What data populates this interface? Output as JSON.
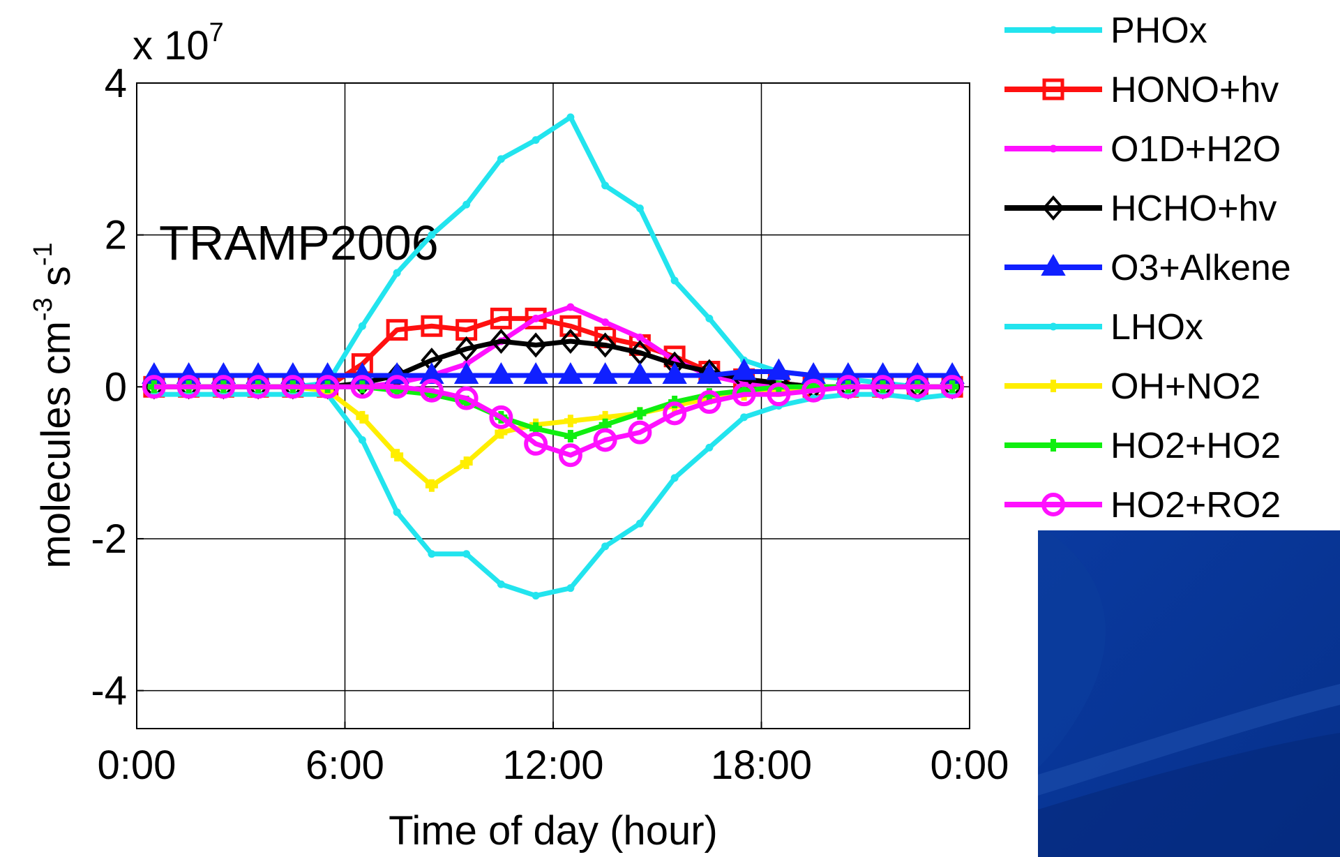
{
  "chart_data": {
    "type": "line",
    "annotation": "TRAMP2006",
    "multiplier": [
      "x 10",
      "7"
    ],
    "xlabel": "Time of day  (hour)",
    "ylabel": [
      "molecules cm",
      "-3",
      " s",
      "-1"
    ],
    "x": [
      0.5,
      1.5,
      2.5,
      3.5,
      4.5,
      5.5,
      6.5,
      7.5,
      8.5,
      9.5,
      10.5,
      11.5,
      12.5,
      13.5,
      14.5,
      15.5,
      16.5,
      17.5,
      18.5,
      19.5,
      20.5,
      21.5,
      22.5,
      23.5
    ],
    "xlim": [
      0,
      24
    ],
    "xticks": [
      {
        "value": 0,
        "label": "0:00"
      },
      {
        "value": 6,
        "label": "6:00"
      },
      {
        "value": 12,
        "label": "12:00"
      },
      {
        "value": 18,
        "label": "18:00"
      },
      {
        "value": 24,
        "label": "0:00"
      }
    ],
    "ylim": [
      -4.5,
      4
    ],
    "yticks": [
      -4,
      -2,
      0,
      2,
      4
    ],
    "grid": true,
    "legend": "outside-right",
    "series": [
      {
        "name": "PHOx",
        "color": "#22e4ee",
        "marker": "dot",
        "values": [
          0,
          0,
          0,
          0,
          0,
          0.05,
          0.8,
          1.5,
          2.0,
          2.4,
          3.0,
          3.25,
          3.55,
          2.65,
          2.35,
          1.4,
          0.9,
          0.35,
          0.2,
          0.15,
          0.1,
          0.05,
          0,
          0
        ]
      },
      {
        "name": "HONO+hv",
        "color": "#ff1010",
        "marker": "square",
        "values": [
          0,
          0,
          0,
          0,
          0,
          0,
          0.3,
          0.75,
          0.8,
          0.75,
          0.9,
          0.9,
          0.8,
          0.65,
          0.55,
          0.4,
          0.2,
          0.1,
          0.05,
          0,
          0,
          0,
          0,
          0
        ]
      },
      {
        "name": "O1D+H2O",
        "color": "#ff10ff",
        "marker": "dot",
        "values": [
          0,
          0,
          0,
          0,
          0,
          0,
          0,
          0.05,
          0.15,
          0.3,
          0.6,
          0.9,
          1.05,
          0.85,
          0.65,
          0.35,
          0.15,
          0.05,
          0,
          0,
          0,
          0,
          0,
          0
        ]
      },
      {
        "name": "HCHO+hv",
        "color": "#000000",
        "marker": "diamond",
        "values": [
          0,
          0,
          0,
          0,
          0,
          0,
          0.05,
          0.15,
          0.35,
          0.5,
          0.6,
          0.55,
          0.6,
          0.55,
          0.45,
          0.3,
          0.2,
          0.1,
          0.05,
          0,
          0,
          0,
          0,
          0
        ]
      },
      {
        "name": "O3+Alkene",
        "color": "#1020ff",
        "marker": "triangle",
        "values": [
          0.15,
          0.15,
          0.15,
          0.15,
          0.15,
          0.15,
          0.15,
          0.15,
          0.15,
          0.15,
          0.15,
          0.15,
          0.15,
          0.15,
          0.15,
          0.15,
          0.15,
          0.2,
          0.2,
          0.15,
          0.15,
          0.15,
          0.15,
          0.15
        ]
      },
      {
        "name": "LHOx",
        "color": "#22e4ee",
        "marker": "dot",
        "values": [
          -0.1,
          -0.1,
          -0.1,
          -0.1,
          -0.1,
          -0.1,
          -0.7,
          -1.65,
          -2.2,
          -2.2,
          -2.6,
          -2.75,
          -2.65,
          -2.1,
          -1.8,
          -1.2,
          -0.8,
          -0.4,
          -0.25,
          -0.15,
          -0.1,
          -0.1,
          -0.15,
          -0.1
        ]
      },
      {
        "name": "OH+NO2",
        "color": "#ffee00",
        "marker": "plus",
        "values": [
          0,
          0,
          0,
          0,
          0,
          -0.05,
          -0.4,
          -0.9,
          -1.3,
          -1.0,
          -0.6,
          -0.5,
          -0.45,
          -0.4,
          -0.35,
          -0.25,
          -0.15,
          -0.1,
          -0.05,
          0,
          0,
          0,
          0,
          0
        ]
      },
      {
        "name": "HO2+HO2",
        "color": "#10ee10",
        "marker": "plus",
        "values": [
          0,
          0,
          0,
          0,
          0,
          0,
          0,
          -0.05,
          -0.1,
          -0.2,
          -0.4,
          -0.55,
          -0.65,
          -0.5,
          -0.35,
          -0.2,
          -0.1,
          -0.05,
          0,
          0,
          0,
          0,
          0,
          0
        ]
      },
      {
        "name": "HO2+RO2",
        "color": "#ff10ff",
        "marker": "circle",
        "values": [
          0,
          0,
          0,
          0,
          0,
          0,
          0,
          0,
          -0.05,
          -0.15,
          -0.4,
          -0.75,
          -0.9,
          -0.7,
          -0.6,
          -0.35,
          -0.2,
          -0.1,
          -0.1,
          -0.05,
          0,
          0,
          0,
          0
        ]
      }
    ]
  }
}
